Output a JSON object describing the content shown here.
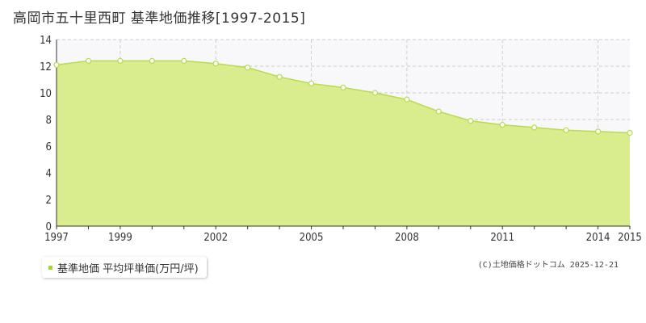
{
  "chart_data": {
    "type": "area",
    "title": "高岡市五十里西町 基準地価推移[1997-2015]",
    "x": [
      1997,
      1998,
      1999,
      2000,
      2001,
      2002,
      2003,
      2004,
      2005,
      2006,
      2007,
      2008,
      2009,
      2010,
      2011,
      2012,
      2013,
      2014,
      2015
    ],
    "series": [
      {
        "name": "基準地価 平均坪単価(万円/坪)",
        "values": [
          12.1,
          12.4,
          12.4,
          12.4,
          12.4,
          12.2,
          11.9,
          11.2,
          10.7,
          10.4,
          10.0,
          9.5,
          8.6,
          7.9,
          7.6,
          7.4,
          7.2,
          7.1,
          7.0
        ]
      }
    ],
    "x_ticks": [
      "1997",
      "1999",
      "2002",
      "2005",
      "2008",
      "2011",
      "2014",
      "2015"
    ],
    "y_ticks": [
      "0",
      "2",
      "4",
      "6",
      "8",
      "10",
      "12",
      "14"
    ],
    "ylim": [
      0,
      14
    ],
    "xlim": [
      1997,
      2015
    ],
    "grid": true,
    "legend": "bottom-left",
    "colors": {
      "fill": "#d9ec8e",
      "line": "#b8dc4a",
      "marker": "#ffffff",
      "grid": "#cccccc",
      "plot_bg": "#f8f8fa",
      "swatch": "#a8d42e"
    }
  },
  "credit": "(C)土地価格ドットコム 2025-12-21"
}
